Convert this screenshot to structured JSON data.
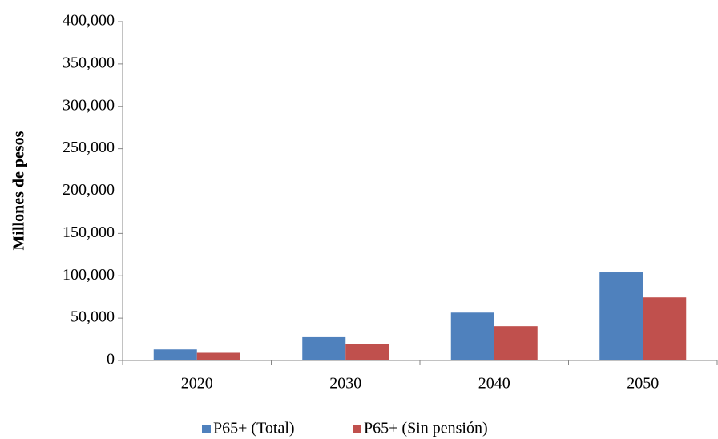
{
  "chart_data": {
    "type": "bar",
    "y_label": "Millones de pesos",
    "categories": [
      "2020",
      "2030",
      "2040",
      "2050"
    ],
    "series": [
      {
        "name": "P65+ (Total)",
        "color": "#4f81bd",
        "values": [
          13000,
          27500,
          56500,
          104000
        ]
      },
      {
        "name": "P65+ (Sin pensión)",
        "color": "#c0504d",
        "values": [
          9000,
          19500,
          40500,
          74500
        ]
      }
    ],
    "ylim": [
      0,
      400000
    ],
    "yticks": [
      0,
      {
        "value": 50000,
        "label": "50,000"
      },
      {
        "value": 100000,
        "label": "100,000"
      },
      {
        "value": 150000,
        "label": "150,000"
      },
      {
        "value": 200000,
        "label": "200,000"
      },
      {
        "value": 250000,
        "label": "250,000"
      },
      {
        "value": 300000,
        "label": "300,000"
      },
      {
        "value": 350000,
        "label": "350,000"
      },
      {
        "value": 400000,
        "label": "400,000"
      }
    ],
    "grid": false,
    "legend": "bottom"
  }
}
